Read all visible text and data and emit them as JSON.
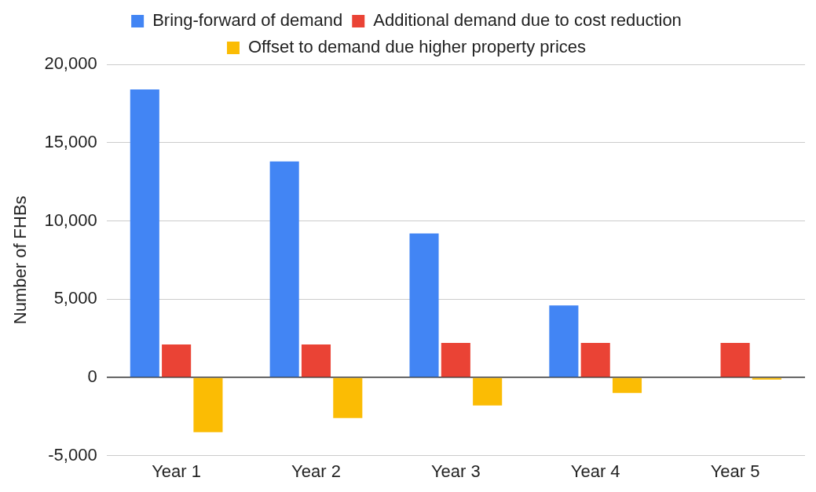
{
  "chart_data": {
    "type": "bar",
    "ylabel": "Number of FHBs",
    "categories": [
      "Year 1",
      "Year 2",
      "Year 3",
      "Year 4",
      "Year 5"
    ],
    "series": [
      {
        "name": "Bring-forward of demand",
        "color": "#4285f4",
        "values": [
          18400,
          13800,
          9200,
          4600,
          0
        ]
      },
      {
        "name": "Additional demand due to cost reduction",
        "color": "#ea4335",
        "values": [
          2100,
          2100,
          2200,
          2200,
          2200
        ]
      },
      {
        "name": "Offset to demand due higher property prices",
        "color": "#fbbc04",
        "values": [
          -3500,
          -2600,
          -1800,
          -1000,
          -150
        ]
      }
    ],
    "ylim": [
      -5000,
      20000
    ],
    "yticks": [
      {
        "value": -5000,
        "label": "-5,000"
      },
      0,
      {
        "value": 5000,
        "label": "5,000"
      },
      {
        "value": 10000,
        "label": "10,000"
      },
      {
        "value": 15000,
        "label": "15,000"
      },
      {
        "value": 20000,
        "label": "20,000"
      }
    ],
    "grid": "y",
    "legend": "top"
  }
}
